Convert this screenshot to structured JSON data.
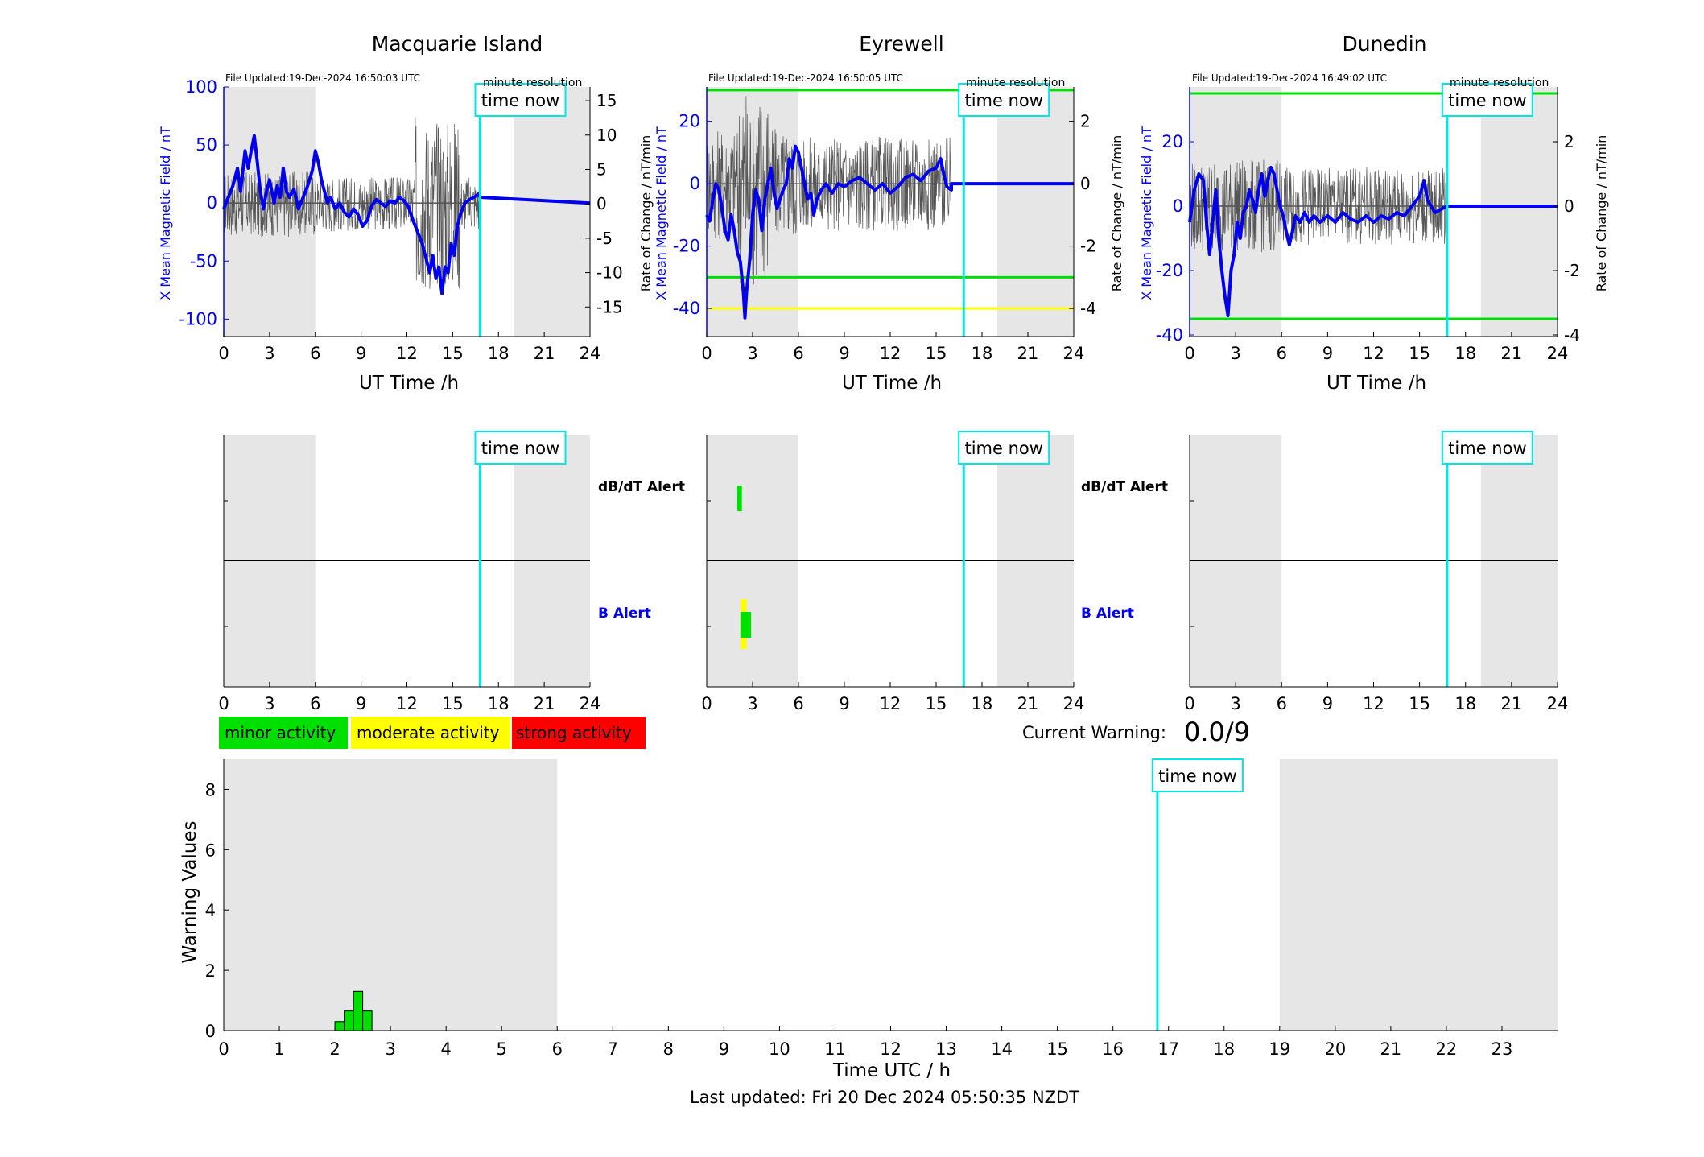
{
  "stations": [
    {
      "name": "Macquarie Island",
      "file_updated": "File Updated:19-Dec-2024 16:50:03 UTC",
      "resolution_label": "minute resolution",
      "time_now_label": "time now",
      "left_ylabel": "X Mean Magnetic Field / nT",
      "right_ylabel": "Rate of Change / nT/min",
      "xlabel": "UT Time /h",
      "ylim": [
        -115,
        100
      ],
      "yticks": [
        -100,
        -50,
        0,
        50,
        100
      ],
      "right_ylim": [
        -19.3,
        17
      ],
      "right_yticks": [
        -15,
        -10,
        -5,
        0,
        5,
        10,
        15
      ],
      "xticks": [
        0,
        3,
        6,
        9,
        12,
        15,
        18,
        21,
        24
      ],
      "night_shading": [
        [
          0,
          6
        ],
        [
          19,
          24
        ]
      ],
      "time_now_h": 16.8,
      "data_end_h": 16.8,
      "thresholds": [],
      "mean_field_trace": [
        [
          0,
          -5
        ],
        [
          0.3,
          5
        ],
        [
          0.6,
          15
        ],
        [
          0.9,
          30
        ],
        [
          1.1,
          10
        ],
        [
          1.4,
          45
        ],
        [
          1.6,
          30
        ],
        [
          1.8,
          45
        ],
        [
          2.0,
          58
        ],
        [
          2.2,
          35
        ],
        [
          2.4,
          10
        ],
        [
          2.6,
          -5
        ],
        [
          2.8,
          10
        ],
        [
          3.0,
          20
        ],
        [
          3.3,
          0
        ],
        [
          3.5,
          15
        ],
        [
          3.7,
          5
        ],
        [
          3.9,
          30
        ],
        [
          4.1,
          10
        ],
        [
          4.3,
          5
        ],
        [
          4.6,
          12
        ],
        [
          4.9,
          -5
        ],
        [
          5.2,
          5
        ],
        [
          5.5,
          15
        ],
        [
          5.8,
          28
        ],
        [
          6.0,
          45
        ],
        [
          6.2,
          35
        ],
        [
          6.4,
          20
        ],
        [
          6.6,
          10
        ],
        [
          6.8,
          0
        ],
        [
          7.0,
          5
        ],
        [
          7.3,
          -5
        ],
        [
          7.6,
          0
        ],
        [
          7.9,
          -8
        ],
        [
          8.2,
          -12
        ],
        [
          8.5,
          -5
        ],
        [
          8.8,
          -10
        ],
        [
          9.1,
          -20
        ],
        [
          9.4,
          -15
        ],
        [
          9.7,
          -2
        ],
        [
          10.0,
          3
        ],
        [
          10.3,
          0
        ],
        [
          10.6,
          -3
        ],
        [
          10.9,
          2
        ],
        [
          11.2,
          0
        ],
        [
          11.5,
          5
        ],
        [
          11.8,
          2
        ],
        [
          12.1,
          -3
        ],
        [
          12.4,
          -15
        ],
        [
          12.7,
          -25
        ],
        [
          13.0,
          -35
        ],
        [
          13.3,
          -50
        ],
        [
          13.5,
          -60
        ],
        [
          13.7,
          -45
        ],
        [
          13.9,
          -65
        ],
        [
          14.1,
          -55
        ],
        [
          14.3,
          -78
        ],
        [
          14.5,
          -55
        ],
        [
          14.7,
          -60
        ],
        [
          14.9,
          -35
        ],
        [
          15.1,
          -45
        ],
        [
          15.3,
          -20
        ],
        [
          15.5,
          -10
        ],
        [
          15.8,
          0
        ],
        [
          16.1,
          3
        ],
        [
          16.4,
          5
        ],
        [
          16.7,
          8
        ],
        [
          16.8,
          5
        ],
        [
          24,
          0
        ]
      ],
      "rate_of_change_range_h": [
        0,
        16.8
      ],
      "rate_of_change_amplitude": 4
    },
    {
      "name": "Eyrewell",
      "file_updated": "File Updated:19-Dec-2024 16:50:05 UTC",
      "resolution_label": "minute resolution",
      "time_now_label": "time now",
      "left_ylabel": "X Mean Magnetic Field / nT",
      "right_ylabel": "Rate of Change / nT/min",
      "xlabel": "UT Time /h",
      "ylim": [
        -49,
        31
      ],
      "yticks": [
        -40,
        -20,
        0,
        20
      ],
      "right_ylim": [
        -4.9,
        3.1
      ],
      "right_yticks": [
        -4,
        -2,
        0,
        2
      ],
      "xticks": [
        0,
        3,
        6,
        9,
        12,
        15,
        18,
        21,
        24
      ],
      "night_shading": [
        [
          0,
          6
        ],
        [
          19,
          24
        ]
      ],
      "time_now_h": 16.8,
      "data_end_h": 16.0,
      "thresholds": [
        {
          "value": 30,
          "color": "#00e000"
        },
        {
          "value": -30,
          "color": "#00e000"
        },
        {
          "value": -40,
          "color": "#ffff00"
        }
      ],
      "mean_field_trace": [
        [
          0,
          -10
        ],
        [
          0.2,
          -12
        ],
        [
          0.4,
          -5
        ],
        [
          0.6,
          0
        ],
        [
          0.8,
          -2
        ],
        [
          1.0,
          -8
        ],
        [
          1.2,
          -15
        ],
        [
          1.4,
          -18
        ],
        [
          1.6,
          -10
        ],
        [
          1.8,
          -15
        ],
        [
          2.0,
          -22
        ],
        [
          2.2,
          -25
        ],
        [
          2.4,
          -35
        ],
        [
          2.5,
          -43
        ],
        [
          2.6,
          -35
        ],
        [
          2.8,
          -25
        ],
        [
          3.0,
          -10
        ],
        [
          3.2,
          -2
        ],
        [
          3.4,
          -5
        ],
        [
          3.6,
          -15
        ],
        [
          3.8,
          -5
        ],
        [
          4.0,
          0
        ],
        [
          4.2,
          5
        ],
        [
          4.4,
          -3
        ],
        [
          4.6,
          -8
        ],
        [
          4.8,
          -5
        ],
        [
          5.0,
          -2
        ],
        [
          5.2,
          0
        ],
        [
          5.4,
          8
        ],
        [
          5.6,
          5
        ],
        [
          5.8,
          12
        ],
        [
          6.0,
          10
        ],
        [
          6.2,
          5
        ],
        [
          6.4,
          0
        ],
        [
          6.6,
          -5
        ],
        [
          6.8,
          -3
        ],
        [
          7.0,
          -10
        ],
        [
          7.2,
          -5
        ],
        [
          7.5,
          -2
        ],
        [
          7.8,
          0
        ],
        [
          8.2,
          -3
        ],
        [
          8.6,
          0
        ],
        [
          9.0,
          -1
        ],
        [
          9.5,
          1
        ],
        [
          10.0,
          2
        ],
        [
          10.5,
          0
        ],
        [
          11.0,
          -2
        ],
        [
          11.5,
          0
        ],
        [
          12.0,
          -3
        ],
        [
          12.5,
          -1
        ],
        [
          13.0,
          2
        ],
        [
          13.5,
          3
        ],
        [
          14.0,
          1
        ],
        [
          14.5,
          4
        ],
        [
          15.0,
          5
        ],
        [
          15.3,
          8
        ],
        [
          15.5,
          3
        ],
        [
          15.7,
          -1
        ],
        [
          16.0,
          -2
        ],
        [
          16.0,
          0
        ],
        [
          24,
          0
        ]
      ],
      "rate_of_change_range_h": [
        0,
        16.0
      ],
      "rate_of_change_amplitude": 1.5
    },
    {
      "name": "Dunedin",
      "file_updated": "File Updated:19-Dec-2024 16:49:02 UTC",
      "resolution_label": "minute resolution",
      "time_now_label": "time now",
      "left_ylabel": "X Mean Magnetic Field / nT",
      "right_ylabel": "Rate of Change / nT/min",
      "xlabel": "UT Time /h",
      "ylim": [
        -40.5,
        37
      ],
      "yticks": [
        -40,
        -20,
        0,
        20
      ],
      "right_ylim": [
        -4.05,
        3.7
      ],
      "right_yticks": [
        -4,
        -2,
        0,
        2
      ],
      "xticks": [
        0,
        3,
        6,
        9,
        12,
        15,
        18,
        21,
        24
      ],
      "night_shading": [
        [
          0,
          6
        ],
        [
          19,
          24
        ]
      ],
      "time_now_h": 16.8,
      "data_end_h": 16.8,
      "thresholds": [
        {
          "value": 35,
          "color": "#00e000"
        },
        {
          "value": -35,
          "color": "#00e000"
        }
      ],
      "mean_field_trace": [
        [
          0,
          -5
        ],
        [
          0.3,
          5
        ],
        [
          0.6,
          10
        ],
        [
          0.9,
          8
        ],
        [
          1.1,
          -5
        ],
        [
          1.3,
          -15
        ],
        [
          1.5,
          -5
        ],
        [
          1.7,
          5
        ],
        [
          1.9,
          -10
        ],
        [
          2.1,
          -20
        ],
        [
          2.3,
          -28
        ],
        [
          2.5,
          -34
        ],
        [
          2.7,
          -20
        ],
        [
          2.9,
          -15
        ],
        [
          3.1,
          -5
        ],
        [
          3.3,
          -10
        ],
        [
          3.5,
          -2
        ],
        [
          3.7,
          0
        ],
        [
          3.9,
          5
        ],
        [
          4.1,
          2
        ],
        [
          4.3,
          -2
        ],
        [
          4.5,
          5
        ],
        [
          4.7,
          10
        ],
        [
          4.9,
          3
        ],
        [
          5.1,
          8
        ],
        [
          5.3,
          12
        ],
        [
          5.5,
          10
        ],
        [
          5.7,
          5
        ],
        [
          5.9,
          0
        ],
        [
          6.1,
          -3
        ],
        [
          6.3,
          -8
        ],
        [
          6.5,
          -12
        ],
        [
          6.7,
          -8
        ],
        [
          6.9,
          -3
        ],
        [
          7.2,
          -5
        ],
        [
          7.5,
          -2
        ],
        [
          7.8,
          -5
        ],
        [
          8.1,
          -3
        ],
        [
          8.5,
          -5
        ],
        [
          9.0,
          -3
        ],
        [
          9.5,
          -5
        ],
        [
          10.0,
          -2
        ],
        [
          10.5,
          -4
        ],
        [
          11.0,
          -5
        ],
        [
          11.5,
          -3
        ],
        [
          12.0,
          -5
        ],
        [
          12.5,
          -3
        ],
        [
          13.0,
          -4
        ],
        [
          13.5,
          -2
        ],
        [
          14.0,
          -3
        ],
        [
          14.5,
          0
        ],
        [
          15.0,
          3
        ],
        [
          15.3,
          8
        ],
        [
          15.5,
          2
        ],
        [
          16.0,
          -2
        ],
        [
          16.4,
          -1
        ],
        [
          16.8,
          0
        ],
        [
          24,
          0
        ]
      ],
      "rate_of_change_range_h": [
        0,
        16.8
      ],
      "rate_of_change_amplitude": 1.2
    }
  ],
  "alerts": {
    "dbdt_label": "dB/dT Alert",
    "b_label": "B Alert",
    "time_now_label": "time now",
    "xticks": [
      0,
      3,
      6,
      9,
      12,
      15,
      18,
      21,
      24
    ],
    "eyrewell_dbdt_marks": [
      {
        "start_h": 2.0,
        "end_h": 2.3,
        "color": "#00e000"
      }
    ],
    "eyrewell_b_marks": [
      {
        "start_h": 2.2,
        "end_h": 2.6,
        "color": "#ffff00"
      },
      {
        "start_h": 2.2,
        "end_h": 2.9,
        "color": "#00e000"
      }
    ]
  },
  "legend": {
    "minor": "minor activity",
    "moderate": "moderate activity",
    "strong": "strong activity",
    "minor_color": "#00e000",
    "moderate_color": "#ffff00",
    "strong_color": "#ff0000"
  },
  "current_warning": {
    "label": "Current Warning:",
    "value": "0.0/9"
  },
  "chart_data": {
    "type": "bar",
    "title": "",
    "xlabel": "Time UTC / h",
    "ylabel": "Warning Values",
    "xlim": [
      0,
      24
    ],
    "ylim": [
      0,
      9
    ],
    "xticks": [
      0,
      1,
      2,
      3,
      4,
      5,
      6,
      7,
      8,
      9,
      10,
      11,
      12,
      13,
      14,
      15,
      16,
      17,
      18,
      19,
      20,
      21,
      22,
      23
    ],
    "yticks": [
      0,
      2,
      4,
      6,
      8
    ],
    "bar_width_h": 0.1667,
    "x": [
      2.0833,
      2.25,
      2.4167,
      2.5833
    ],
    "values": [
      0.3,
      0.65,
      1.3,
      0.65
    ],
    "bar_color": "#00e000",
    "night_shading": [
      [
        0,
        6
      ],
      [
        19,
        24
      ]
    ],
    "time_now_h": 16.8,
    "time_now_label": "time now"
  },
  "footer": {
    "last_updated": "Last updated: Fri 20 Dec 2024 05:50:35 NZDT"
  }
}
